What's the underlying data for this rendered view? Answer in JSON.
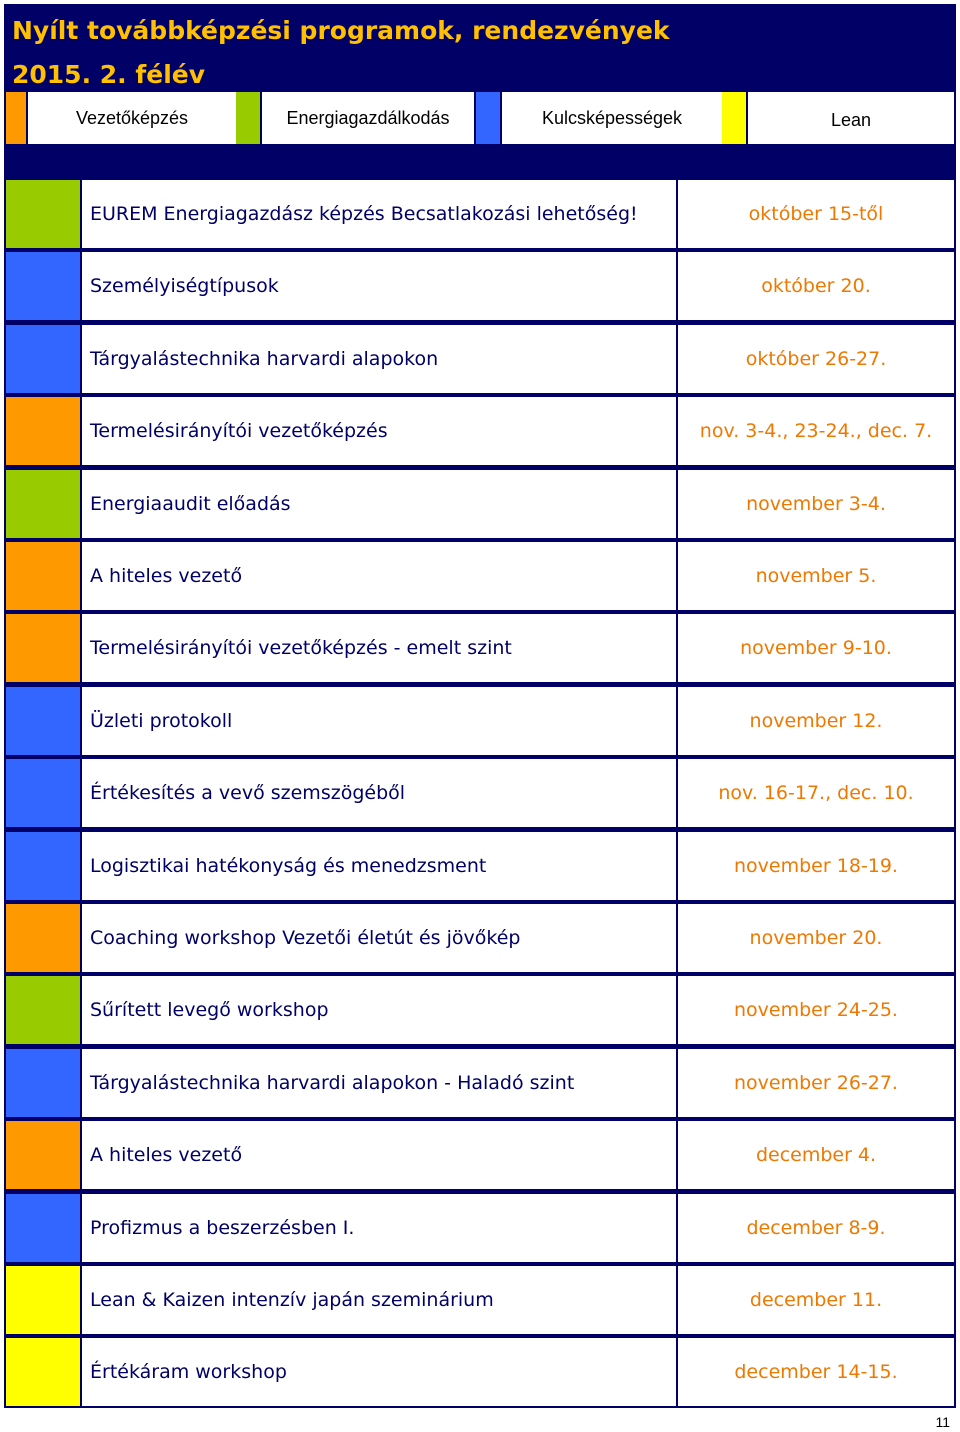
{
  "title": {
    "line1": "Nyílt továbbképzési programok, rendezvények",
    "line2": "2015. 2. félév"
  },
  "colors": {
    "navy": "#000066",
    "title_text": "#FFC000",
    "date_text": "#F07800",
    "orange": "#FF9900",
    "green": "#99CC00",
    "blue": "#3366FF",
    "yellow": "#FFFF00"
  },
  "legend": [
    {
      "label": "Vezetőképzés",
      "color": "orange"
    },
    {
      "label": "Energiagazdálkodás",
      "color": "green"
    },
    {
      "label": "Kulcsképességek",
      "color": "blue"
    },
    {
      "label": "Lean",
      "color": "yellow"
    }
  ],
  "events": [
    {
      "title": "EUREM Energiagazdász képzés Becsatlakozási lehetőség!",
      "date": "október 15-től",
      "category": "green"
    },
    {
      "title": "Személyiségtípusok",
      "date": "október 20.",
      "category": "blue"
    },
    {
      "title": "Tárgyalástechnika harvardi alapokon",
      "date": "október 26-27.",
      "category": "blue"
    },
    {
      "title": "Termelésirányítói vezetőképzés",
      "date": "nov. 3-4., 23-24., dec. 7.",
      "category": "orange"
    },
    {
      "title": "Energiaaudit előadás",
      "date": "november 3-4.",
      "category": "green"
    },
    {
      "title": "A hiteles vezető",
      "date": "november 5.",
      "category": "orange"
    },
    {
      "title": "Termelésirányítói vezetőképzés - emelt szint",
      "date": "november 9-10.",
      "category": "orange"
    },
    {
      "title": "Üzleti protokoll",
      "date": "november 12.",
      "category": "blue"
    },
    {
      "title": "Értékesítés a vevő szemszögéből",
      "date": "nov. 16-17., dec. 10.",
      "category": "blue"
    },
    {
      "title": "Logisztikai hatékonyság és menedzsment",
      "date": "november 18-19.",
      "category": "blue"
    },
    {
      "title": "Coaching workshop Vezetői életút és jövőkép",
      "date": "november 20.",
      "category": "orange"
    },
    {
      "title": "Sűrített levegő workshop",
      "date": "november 24-25.",
      "category": "green"
    },
    {
      "title": "Tárgyalástechnika harvardi alapokon - Haladó szint",
      "date": "november 26-27.",
      "category": "blue"
    },
    {
      "title": "A hiteles vezető",
      "date": "december 4.",
      "category": "orange"
    },
    {
      "title": "Profizmus a beszerzésben I.",
      "date": "december 8-9.",
      "category": "blue"
    },
    {
      "title": "Lean & Kaizen intenzív japán szeminárium",
      "date": "december 11.",
      "category": "yellow"
    },
    {
      "title": "Értékáram workshop",
      "date": "december 14-15.",
      "category": "yellow"
    }
  ],
  "page_number": "11"
}
